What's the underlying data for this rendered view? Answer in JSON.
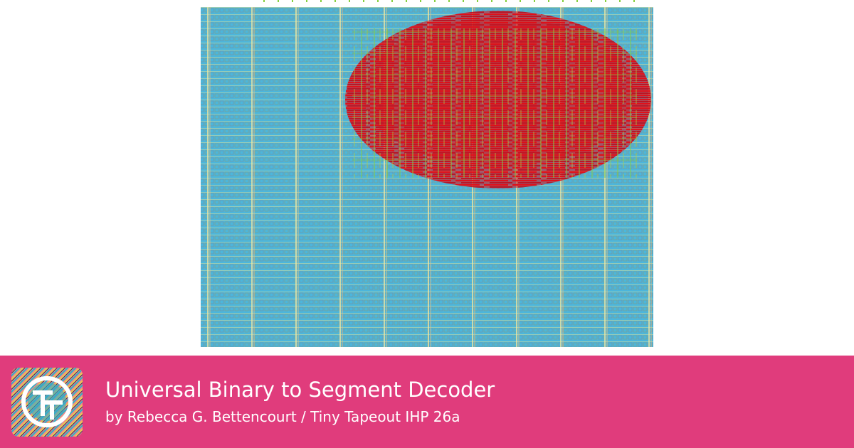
{
  "header": {
    "title": "Universal Binary to Segment Decoder",
    "subtitle": "by Rebecca G. Bettencourt / Tiny Tapeout IHP 26a"
  }
}
